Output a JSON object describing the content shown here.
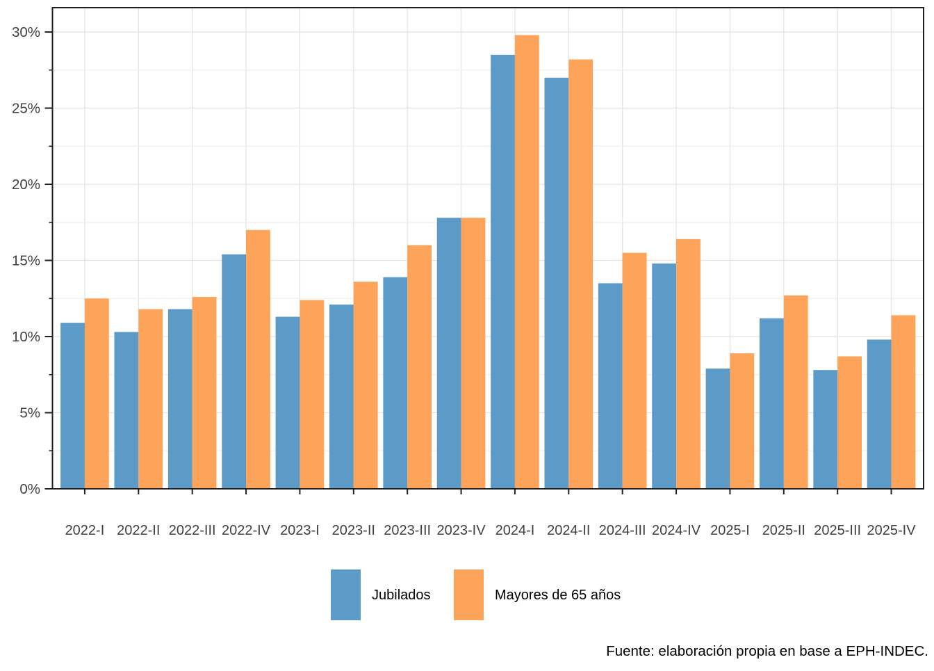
{
  "chart_data": {
    "type": "bar",
    "title": "",
    "xlabel": "",
    "ylabel": "",
    "categories": [
      "2022-I",
      "2022-II",
      "2022-III",
      "2022-IV",
      "2023-I",
      "2023-II",
      "2023-III",
      "2023-IV",
      "2024-I",
      "2024-II",
      "2024-III",
      "2024-IV",
      "2025-I",
      "2025-II",
      "2025-III",
      "2025-IV"
    ],
    "series": [
      {
        "name": "Jubilados",
        "color": "#5C9BC7",
        "values": [
          10.9,
          10.3,
          11.8,
          15.4,
          11.3,
          12.1,
          13.9,
          17.8,
          28.5,
          27.0,
          13.5,
          14.8,
          7.9,
          11.2,
          7.8,
          9.8
        ]
      },
      {
        "name": "Mayores de 65 años",
        "color": "#FDA45A",
        "values": [
          12.5,
          11.8,
          12.6,
          17.0,
          12.4,
          13.6,
          16.0,
          17.8,
          29.8,
          28.2,
          15.5,
          16.4,
          8.9,
          12.7,
          8.7,
          11.4
        ]
      }
    ],
    "ylim": [
      0,
      31.6
    ],
    "y_major_ticks": [
      0,
      5,
      10,
      15,
      20,
      25,
      30
    ],
    "y_tick_labels": [
      "0%",
      "5%",
      "10%",
      "15%",
      "20%",
      "25%",
      "30%"
    ],
    "y_minor_ticks": [
      2.5,
      7.5,
      12.5,
      17.5,
      22.5,
      27.5
    ],
    "grid": true,
    "legend_position": "bottom",
    "caption": "Fuente: elaboración propia en base a EPH-INDEC."
  },
  "colors": {
    "background": "#FFFFFF",
    "panel_border": "#1F1F1F",
    "axis_tick": "#1F1F1F",
    "axis_text": "#404040",
    "grid_major": "#E4E4E4",
    "grid_minor": "#EFEFEF",
    "legend_text": "#000000",
    "caption_text": "#000000"
  }
}
